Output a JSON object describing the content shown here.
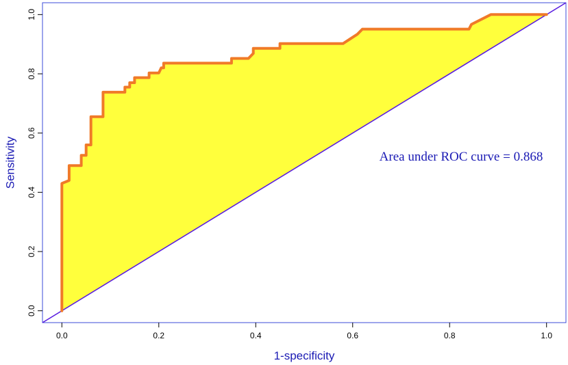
{
  "chart_data": {
    "type": "line",
    "title": "",
    "xlabel": "1-specificity",
    "ylabel": "Sensitivity",
    "xlim": [
      -0.04,
      1.04
    ],
    "ylim": [
      -0.04,
      1.04
    ],
    "x_ticks": [
      "0.0",
      "0.2",
      "0.4",
      "0.6",
      "0.8",
      "1.0"
    ],
    "y_ticks": [
      "0.0",
      "0.2",
      "0.4",
      "0.6",
      "0.8",
      "1.0"
    ],
    "annotation": "Area under ROC curve = 0.868",
    "grid": false,
    "series": [
      {
        "role": "roc-curve",
        "points": [
          [
            0.0,
            0.0
          ],
          [
            0.0,
            0.43
          ],
          [
            0.015,
            0.44
          ],
          [
            0.015,
            0.49
          ],
          [
            0.04,
            0.49
          ],
          [
            0.04,
            0.525
          ],
          [
            0.05,
            0.525
          ],
          [
            0.05,
            0.56
          ],
          [
            0.06,
            0.56
          ],
          [
            0.06,
            0.655
          ],
          [
            0.085,
            0.655
          ],
          [
            0.085,
            0.738
          ],
          [
            0.13,
            0.738
          ],
          [
            0.13,
            0.755
          ],
          [
            0.14,
            0.755
          ],
          [
            0.14,
            0.77
          ],
          [
            0.15,
            0.77
          ],
          [
            0.15,
            0.787
          ],
          [
            0.18,
            0.787
          ],
          [
            0.18,
            0.803
          ],
          [
            0.2,
            0.803
          ],
          [
            0.205,
            0.82
          ],
          [
            0.21,
            0.82
          ],
          [
            0.21,
            0.836
          ],
          [
            0.35,
            0.836
          ],
          [
            0.35,
            0.852
          ],
          [
            0.385,
            0.852
          ],
          [
            0.395,
            0.869
          ],
          [
            0.395,
            0.886
          ],
          [
            0.45,
            0.886
          ],
          [
            0.45,
            0.902
          ],
          [
            0.58,
            0.902
          ],
          [
            0.61,
            0.934
          ],
          [
            0.62,
            0.951
          ],
          [
            0.84,
            0.951
          ],
          [
            0.845,
            0.967
          ],
          [
            0.885,
            1.0
          ],
          [
            1.0,
            1.0
          ]
        ]
      },
      {
        "role": "chance-line",
        "points": [
          [
            -0.04,
            -0.04
          ],
          [
            1.04,
            1.04
          ]
        ]
      }
    ],
    "colors": {
      "fill": "#ffff3c",
      "curve": "#f07a28",
      "diagonal": "#5a1ee0",
      "frame": "#3b4bd8",
      "label_text": "#1a1ab4"
    }
  }
}
